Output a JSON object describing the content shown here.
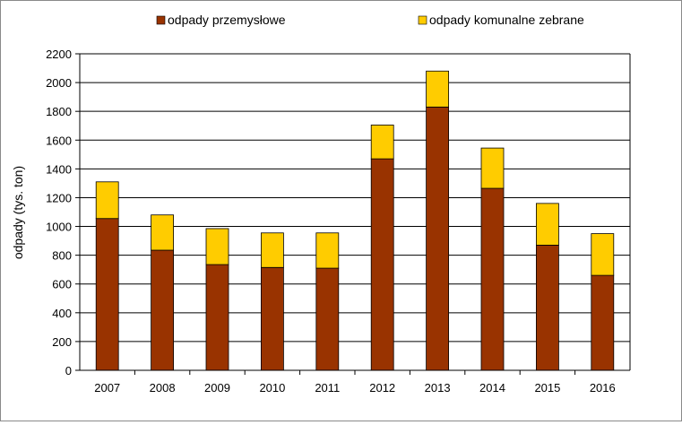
{
  "chart_data": {
    "type": "bar",
    "stacked": true,
    "categories": [
      "2007",
      "2008",
      "2009",
      "2010",
      "2011",
      "2012",
      "2013",
      "2014",
      "2015",
      "2016"
    ],
    "series": [
      {
        "name": "odpady przemysłowe",
        "color": "#993300",
        "values": [
          1055,
          835,
          735,
          715,
          710,
          1470,
          1830,
          1265,
          870,
          660
        ]
      },
      {
        "name": "odpady komunalne zebrane",
        "color": "#ffcc00",
        "values": [
          255,
          245,
          250,
          240,
          245,
          235,
          250,
          280,
          290,
          290
        ]
      }
    ],
    "ylabel": "odpady (tys. ton)",
    "xlabel": "",
    "ylim": [
      0,
      2200
    ],
    "yticks": [
      "0",
      "200",
      "400",
      "600",
      "800",
      "1000",
      "1200",
      "1400",
      "1600",
      "1800",
      "2000",
      "2200"
    ],
    "grid": true,
    "legend": "top"
  }
}
